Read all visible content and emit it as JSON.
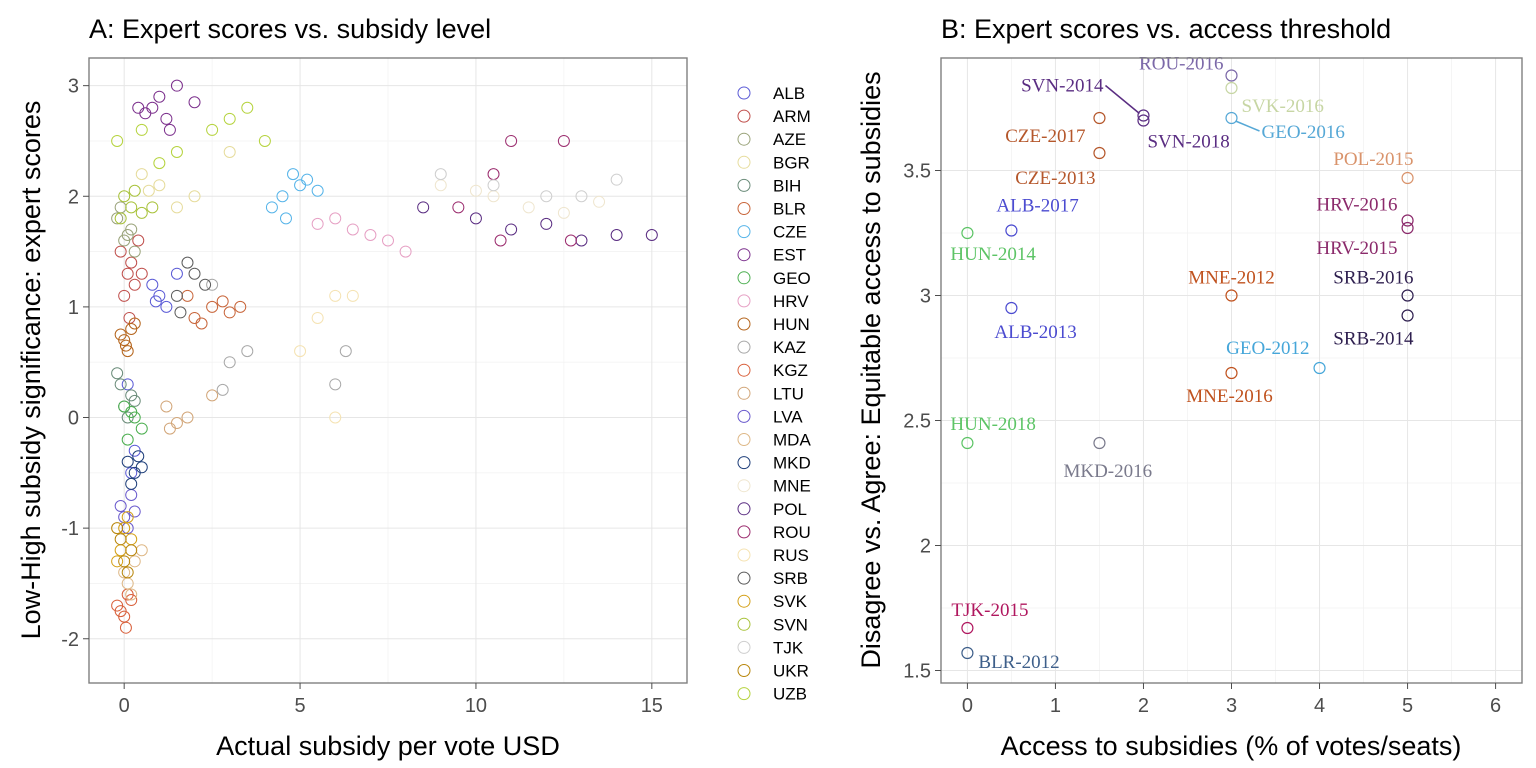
{
  "chart_data": [
    {
      "type": "scatter",
      "panel": "A",
      "title": "A: Expert scores vs. subsidy level",
      "xlabel": "Actual subsidy per vote USD",
      "ylabel": "Low-High subsidy significance: expert scores",
      "xlim": [
        -1,
        16
      ],
      "ylim": [
        -2.4,
        3.25
      ],
      "xticks": [
        0,
        5,
        10,
        15
      ],
      "yticks": [
        -2,
        -1,
        0,
        1,
        2,
        3
      ],
      "grid": true,
      "marker": "open-circle",
      "legend_position": "right",
      "series": [
        {
          "name": "ALB",
          "color": "#5b5bd6",
          "points": [
            [
              0.2,
              -0.5
            ],
            [
              0.3,
              -0.3
            ],
            [
              1.0,
              1.1
            ],
            [
              0.8,
              1.2
            ],
            [
              1.2,
              1.0
            ],
            [
              0.1,
              0.3
            ],
            [
              1.5,
              1.3
            ],
            [
              0.9,
              1.05
            ]
          ]
        },
        {
          "name": "ARM",
          "color": "#c0504d",
          "points": [
            [
              -0.1,
              1.5
            ],
            [
              0.1,
              1.3
            ],
            [
              0.3,
              1.2
            ],
            [
              0.2,
              1.4
            ],
            [
              0.4,
              1.6
            ],
            [
              0.0,
              1.1
            ],
            [
              0.5,
              1.3
            ],
            [
              0.15,
              0.9
            ]
          ]
        },
        {
          "name": "AZE",
          "color": "#9aa37a",
          "points": [
            [
              -0.2,
              1.8
            ],
            [
              0.0,
              1.6
            ],
            [
              0.2,
              1.7
            ],
            [
              -0.1,
              1.9
            ],
            [
              0.3,
              1.5
            ],
            [
              0.1,
              1.65
            ]
          ]
        },
        {
          "name": "BGR",
          "color": "#e6dc9c",
          "points": [
            [
              1.0,
              2.1
            ],
            [
              1.5,
              1.9
            ],
            [
              2.0,
              2.0
            ],
            [
              0.5,
              2.2
            ],
            [
              3.0,
              2.4
            ],
            [
              0.7,
              2.05
            ]
          ]
        },
        {
          "name": "BIH",
          "color": "#6b8c7a",
          "points": [
            [
              -0.1,
              0.3
            ],
            [
              0.0,
              0.1
            ],
            [
              0.2,
              0.2
            ],
            [
              -0.2,
              0.4
            ],
            [
              0.1,
              0.0
            ],
            [
              0.3,
              0.15
            ]
          ]
        },
        {
          "name": "BLR",
          "color": "#c8653a",
          "points": [
            [
              2.0,
              0.9
            ],
            [
              2.5,
              1.0
            ],
            [
              3.0,
              0.95
            ],
            [
              1.8,
              1.1
            ],
            [
              2.2,
              0.85
            ],
            [
              3.3,
              1.0
            ],
            [
              2.8,
              1.05
            ]
          ]
        },
        {
          "name": "CZE",
          "color": "#56b4e9",
          "points": [
            [
              4.5,
              2.0
            ],
            [
              4.8,
              2.2
            ],
            [
              5.0,
              2.1
            ],
            [
              4.2,
              1.9
            ],
            [
              5.5,
              2.05
            ],
            [
              4.6,
              1.8
            ],
            [
              5.2,
              2.15
            ]
          ]
        },
        {
          "name": "EST",
          "color": "#7b2f8c",
          "points": [
            [
              0.8,
              2.8
            ],
            [
              1.0,
              2.9
            ],
            [
              1.2,
              2.7
            ],
            [
              1.5,
              3.0
            ],
            [
              0.6,
              2.75
            ],
            [
              2.0,
              2.85
            ],
            [
              1.3,
              2.6
            ],
            [
              0.4,
              2.8
            ]
          ]
        },
        {
          "name": "GEO",
          "color": "#4caf50",
          "points": [
            [
              0.1,
              -0.2
            ],
            [
              0.3,
              0.0
            ],
            [
              0.0,
              0.1
            ],
            [
              0.5,
              -0.1
            ],
            [
              0.2,
              0.05
            ]
          ]
        },
        {
          "name": "HRV",
          "color": "#e6a0c4",
          "points": [
            [
              6.0,
              1.8
            ],
            [
              7.5,
              1.6
            ],
            [
              6.5,
              1.7
            ],
            [
              8.0,
              1.5
            ],
            [
              7.0,
              1.65
            ],
            [
              5.5,
              1.75
            ]
          ]
        },
        {
          "name": "HUN",
          "color": "#b5651d",
          "points": [
            [
              0.0,
              0.7
            ],
            [
              0.2,
              0.8
            ],
            [
              0.1,
              0.6
            ],
            [
              -0.1,
              0.75
            ],
            [
              0.3,
              0.85
            ],
            [
              0.05,
              0.65
            ]
          ]
        },
        {
          "name": "KAZ",
          "color": "#a9a9a9",
          "points": [
            [
              2.5,
              1.2
            ],
            [
              3.0,
              0.5
            ],
            [
              3.5,
              0.6
            ],
            [
              6.0,
              0.3
            ],
            [
              6.3,
              0.6
            ],
            [
              2.8,
              0.25
            ]
          ]
        },
        {
          "name": "KGZ",
          "color": "#d9603b",
          "points": [
            [
              -0.2,
              -1.7
            ],
            [
              0.0,
              -1.8
            ],
            [
              0.1,
              -1.6
            ],
            [
              -0.1,
              -1.75
            ],
            [
              0.2,
              -1.65
            ],
            [
              0.05,
              -1.9
            ]
          ]
        },
        {
          "name": "LTU",
          "color": "#d2a679",
          "points": [
            [
              1.2,
              0.1
            ],
            [
              1.8,
              0.0
            ],
            [
              1.5,
              -0.05
            ],
            [
              2.5,
              0.2
            ],
            [
              1.3,
              -0.1
            ]
          ]
        },
        {
          "name": "LVA",
          "color": "#6a5acd",
          "points": [
            [
              0.0,
              -0.9
            ],
            [
              0.2,
              -0.7
            ],
            [
              -0.1,
              -0.8
            ],
            [
              0.1,
              -1.0
            ],
            [
              0.3,
              -0.85
            ]
          ]
        },
        {
          "name": "MDA",
          "color": "#deb887",
          "points": [
            [
              0.1,
              -1.5
            ],
            [
              0.3,
              -1.3
            ],
            [
              0.0,
              -1.4
            ],
            [
              0.5,
              -1.2
            ],
            [
              0.2,
              -1.6
            ]
          ]
        },
        {
          "name": "MKD",
          "color": "#1f3f7a",
          "points": [
            [
              0.1,
              -0.4
            ],
            [
              0.3,
              -0.5
            ],
            [
              0.5,
              -0.45
            ],
            [
              0.2,
              -0.6
            ],
            [
              0.4,
              -0.35
            ]
          ]
        },
        {
          "name": "MNE",
          "color": "#efe6cf",
          "points": [
            [
              9.0,
              2.1
            ],
            [
              10.5,
              2.0
            ],
            [
              11.5,
              1.9
            ],
            [
              12.5,
              1.85
            ],
            [
              10.0,
              2.05
            ],
            [
              13.5,
              1.95
            ]
          ]
        },
        {
          "name": "POL",
          "color": "#5a2d82",
          "points": [
            [
              8.5,
              1.9
            ],
            [
              10.0,
              1.8
            ],
            [
              11.0,
              1.7
            ],
            [
              12.0,
              1.75
            ],
            [
              13.0,
              1.6
            ],
            [
              14.0,
              1.65
            ],
            [
              15.0,
              1.65
            ]
          ]
        },
        {
          "name": "ROU",
          "color": "#9b2c6e",
          "points": [
            [
              10.5,
              2.2
            ],
            [
              11.0,
              2.5
            ],
            [
              12.5,
              2.5
            ],
            [
              9.5,
              1.9
            ],
            [
              10.7,
              1.6
            ],
            [
              12.7,
              1.6
            ]
          ]
        },
        {
          "name": "RUS",
          "color": "#f5e3b3",
          "points": [
            [
              5.0,
              0.6
            ],
            [
              6.0,
              1.1
            ],
            [
              6.5,
              1.1
            ],
            [
              5.5,
              0.9
            ],
            [
              6.0,
              0.0
            ]
          ]
        },
        {
          "name": "SRB",
          "color": "#5c5c5c",
          "points": [
            [
              1.5,
              1.1
            ],
            [
              2.0,
              1.3
            ],
            [
              1.8,
              1.4
            ],
            [
              2.3,
              1.2
            ],
            [
              1.6,
              0.95
            ]
          ]
        },
        {
          "name": "SVK",
          "color": "#d4a017",
          "points": [
            [
              -0.1,
              -1.2
            ],
            [
              0.0,
              -1.0
            ],
            [
              0.2,
              -1.1
            ],
            [
              -0.2,
              -1.3
            ],
            [
              0.1,
              -0.9
            ]
          ]
        },
        {
          "name": "SVN",
          "color": "#a8c23a",
          "points": [
            [
              0.0,
              2.0
            ],
            [
              0.2,
              1.9
            ],
            [
              -0.1,
              1.8
            ],
            [
              0.3,
              2.05
            ],
            [
              0.5,
              1.85
            ],
            [
              0.8,
              1.9
            ]
          ]
        },
        {
          "name": "TJK",
          "color": "#cfcfcf",
          "points": [
            [
              9.0,
              2.2
            ],
            [
              10.5,
              2.1
            ],
            [
              12.0,
              2.0
            ],
            [
              13.0,
              2.0
            ],
            [
              14.0,
              2.15
            ]
          ]
        },
        {
          "name": "UKR",
          "color": "#b8860b",
          "points": [
            [
              -0.1,
              -1.1
            ],
            [
              0.0,
              -1.3
            ],
            [
              0.2,
              -1.2
            ],
            [
              -0.2,
              -1.0
            ],
            [
              0.1,
              -1.4
            ]
          ]
        },
        {
          "name": "UZB",
          "color": "#b5d33d",
          "points": [
            [
              -0.2,
              2.5
            ],
            [
              0.5,
              2.6
            ],
            [
              1.0,
              2.3
            ],
            [
              1.5,
              2.4
            ],
            [
              2.5,
              2.6
            ],
            [
              3.0,
              2.7
            ],
            [
              3.5,
              2.8
            ],
            [
              4.0,
              2.5
            ]
          ]
        }
      ]
    },
    {
      "type": "scatter",
      "panel": "B",
      "title": "B: Expert scores vs. access threshold",
      "xlabel": "Access to subsidies (% of votes/seats)",
      "ylabel": "Disagree vs. Agree: Equitable access to subsidies",
      "xlim": [
        -0.3,
        6.3
      ],
      "ylim": [
        1.45,
        3.95
      ],
      "xticks": [
        0,
        1,
        2,
        3,
        4,
        5,
        6
      ],
      "yticks": [
        1.5,
        2.0,
        2.5,
        3.0,
        3.5
      ],
      "grid": true,
      "marker": "open-circle",
      "points": [
        {
          "label": "ROU-2016",
          "x": 3,
          "y": 3.88,
          "color": "#7b68a8"
        },
        {
          "label": "SVK-2016",
          "x": 3,
          "y": 3.83,
          "color": "#c7d6a4"
        },
        {
          "label": "SVN-2014",
          "x": 2,
          "y": 3.72,
          "color": "#5a2d82"
        },
        {
          "label": "SVN-2018",
          "x": 2,
          "y": 3.7,
          "color": "#5a2d82"
        },
        {
          "label": "GEO-2016",
          "x": 3,
          "y": 3.71,
          "color": "#56a8d6"
        },
        {
          "label": "CZE-2017",
          "x": 1.5,
          "y": 3.71,
          "color": "#b5572b"
        },
        {
          "label": "CZE-2013",
          "x": 1.5,
          "y": 3.57,
          "color": "#b5572b"
        },
        {
          "label": "POL-2015",
          "x": 5,
          "y": 3.47,
          "color": "#d9936b"
        },
        {
          "label": "HRV-2016",
          "x": 5,
          "y": 3.3,
          "color": "#8b2a6b"
        },
        {
          "label": "HRV-2015",
          "x": 5,
          "y": 3.27,
          "color": "#8b2a6b"
        },
        {
          "label": "ALB-2017",
          "x": 0.5,
          "y": 3.26,
          "color": "#4b4bd0"
        },
        {
          "label": "HUN-2014",
          "x": 0,
          "y": 3.25,
          "color": "#5dc466"
        },
        {
          "label": "MNE-2012",
          "x": 3,
          "y": 3.0,
          "color": "#c0521e"
        },
        {
          "label": "SRB-2016",
          "x": 5,
          "y": 3.0,
          "color": "#2e1f4f"
        },
        {
          "label": "ALB-2013",
          "x": 0.5,
          "y": 2.95,
          "color": "#4b4bd0"
        },
        {
          "label": "SRB-2014",
          "x": 5,
          "y": 2.92,
          "color": "#2e1f4f"
        },
        {
          "label": "GEO-2012",
          "x": 4,
          "y": 2.71,
          "color": "#45a6d9"
        },
        {
          "label": "MNE-2016",
          "x": 3,
          "y": 2.69,
          "color": "#c0521e"
        },
        {
          "label": "HUN-2018",
          "x": 0,
          "y": 2.41,
          "color": "#5dc466"
        },
        {
          "label": "MKD-2016",
          "x": 1.5,
          "y": 2.41,
          "color": "#7a7a8c"
        },
        {
          "label": "TJK-2015",
          "x": 0,
          "y": 1.67,
          "color": "#b0175f"
        },
        {
          "label": "BLR-2012",
          "x": 0,
          "y": 1.57,
          "color": "#3e5f8a"
        }
      ]
    }
  ]
}
